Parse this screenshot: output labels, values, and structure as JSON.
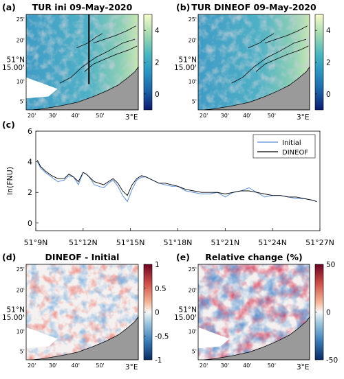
{
  "panels": {
    "a": {
      "label": "(a)",
      "title": "TUR ini 09-May-2020"
    },
    "b": {
      "label": "(b)",
      "title": "TUR DINEOF 09-May-2020"
    },
    "c": {
      "label": "(c)"
    },
    "d": {
      "label": "(d)",
      "title": "DINEOF - Initial"
    },
    "e": {
      "label": "(e)",
      "title": "Relative change (%)"
    }
  },
  "map_axes": {
    "lat_ticks": [
      "25'",
      "20'",
      "51°N",
      "15.00'",
      "10'",
      "5'"
    ],
    "lon_ticks": [
      "20'",
      "30'",
      "40'",
      "50'",
      "3°E"
    ]
  },
  "colorbars": {
    "top": {
      "min": -1,
      "max": 5,
      "ticks": [
        "4",
        "2",
        "0"
      ]
    },
    "diff": {
      "min": -1,
      "max": 1,
      "ticks": [
        "1",
        "0.5",
        "0",
        "-0.5",
        "-1"
      ]
    },
    "rel": {
      "min": -50,
      "max": 50,
      "ticks": [
        "50",
        "0",
        "-50"
      ]
    }
  },
  "colors": {
    "initial": "#5b8ee0",
    "dineof": "#000000",
    "land": "#9a9a9a",
    "nodata": "#ffffff"
  },
  "chart_data": {
    "type": "line",
    "xlabel": "",
    "ylabel": "ln(FNU)",
    "ylim": [
      -0.5,
      6
    ],
    "y_ticks": [
      0,
      2,
      4,
      6
    ],
    "x_ticks": [
      "51°9N",
      "51°12N",
      "51°15N",
      "51°18N",
      "51°21N",
      "51°24N",
      "51°27N"
    ],
    "x_tick_minutes": [
      9,
      12,
      15,
      18,
      21,
      24,
      27
    ],
    "xlim_minutes": [
      9,
      27
    ],
    "legend": "top-right",
    "x": [
      9.1,
      9.3,
      9.6,
      10.0,
      10.4,
      10.8,
      11.1,
      11.4,
      11.7,
      12.0,
      12.2,
      12.4,
      12.7,
      13.0,
      13.3,
      13.6,
      13.9,
      14.2,
      14.5,
      14.8,
      15.1,
      15.4,
      15.7,
      16.0,
      16.4,
      16.8,
      17.2,
      17.6,
      18.0,
      18.5,
      19.0,
      19.5,
      20.0,
      20.5,
      21.0,
      21.5,
      22.0,
      22.5,
      23.0,
      23.5,
      24.0,
      24.5,
      25.0,
      25.5,
      26.0,
      26.5,
      26.8
    ],
    "series": [
      {
        "name": "Initial",
        "values": [
          4.0,
          3.6,
          3.3,
          3.0,
          2.7,
          2.8,
          3.1,
          3.0,
          2.5,
          3.3,
          3.2,
          3.0,
          2.5,
          2.4,
          2.3,
          2.6,
          2.8,
          2.4,
          1.8,
          1.4,
          2.2,
          2.8,
          3.0,
          3.0,
          2.8,
          2.6,
          2.5,
          2.4,
          2.4,
          2.1,
          2.0,
          1.9,
          1.9,
          2.0,
          1.7,
          2.0,
          2.1,
          2.3,
          2.0,
          1.7,
          1.8,
          1.8,
          1.7,
          1.6,
          1.6,
          1.5,
          1.4
        ]
      },
      {
        "name": "DINEOF",
        "values": [
          4.1,
          3.7,
          3.4,
          3.1,
          2.9,
          2.9,
          3.2,
          3.0,
          2.7,
          3.3,
          3.2,
          3.0,
          2.7,
          2.6,
          2.5,
          2.7,
          2.9,
          2.6,
          2.1,
          1.8,
          2.5,
          2.9,
          3.1,
          3.0,
          2.8,
          2.6,
          2.6,
          2.5,
          2.4,
          2.2,
          2.1,
          2.0,
          2.0,
          2.0,
          1.9,
          2.0,
          2.1,
          2.1,
          2.0,
          1.9,
          1.8,
          1.8,
          1.7,
          1.7,
          1.6,
          1.5,
          1.4
        ]
      }
    ]
  }
}
